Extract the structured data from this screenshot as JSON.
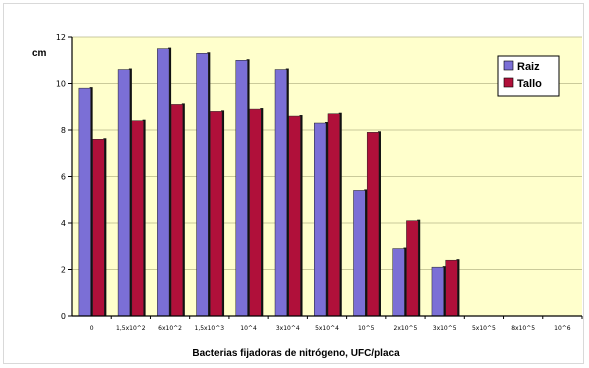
{
  "chart_data": {
    "type": "bar",
    "title": "",
    "xlabel": "Bacterias fijadoras de nitrógeno, UFC/placa",
    "ylabel": "cm",
    "ylim": [
      0,
      12
    ],
    "yticks": [
      "0",
      "2",
      "4",
      "6",
      "8",
      "10",
      "12"
    ],
    "grid": true,
    "legend_position": "top-right",
    "categories": [
      "0",
      "1,5x10^2",
      "6x10^2",
      "1,5x10^3",
      "10^4",
      "3x10^4",
      "5x10^4",
      "10^5",
      "2x10^5",
      "3x10^5",
      "5x10^5",
      "8x10^5",
      "10^6"
    ],
    "series": [
      {
        "name": "Raiz",
        "color": "#7b6fd6",
        "values": [
          9.8,
          10.6,
          11.5,
          11.3,
          11.0,
          10.6,
          8.3,
          5.4,
          2.9,
          2.1,
          0,
          0,
          0
        ]
      },
      {
        "name": "Tallo",
        "color": "#b0103a",
        "values": [
          7.6,
          8.4,
          9.1,
          8.8,
          8.9,
          8.6,
          8.7,
          7.9,
          4.1,
          2.4,
          0,
          0,
          0
        ]
      }
    ],
    "colors": {
      "plot_background": "#ffffcc",
      "gridline": "#b9b98a"
    }
  }
}
